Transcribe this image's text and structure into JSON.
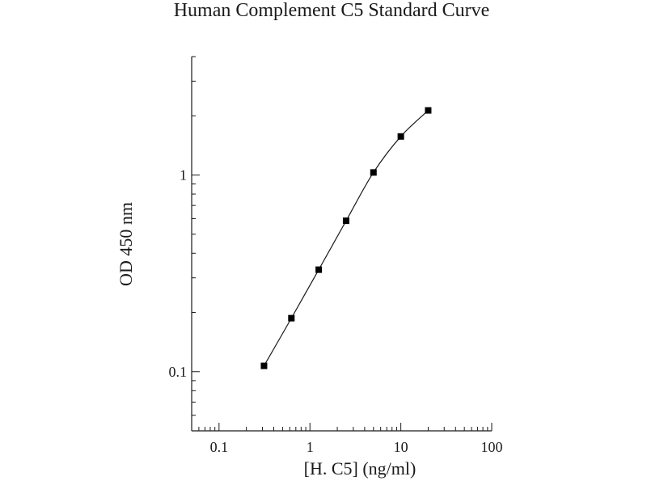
{
  "chart_data": {
    "type": "scatter",
    "title": "Human Complement C5 Standard Curve",
    "xlabel": "[H. C5] (ng/ml)",
    "ylabel": "OD 450 nm",
    "xscale": "log",
    "yscale": "log",
    "xlim": [
      0.05,
      100
    ],
    "ylim": [
      0.05,
      4
    ],
    "x_ticks": [
      {
        "value": 0.1,
        "label": "0.1"
      },
      {
        "value": 1,
        "label": "1"
      },
      {
        "value": 10,
        "label": "10"
      },
      {
        "value": 100,
        "label": "100"
      }
    ],
    "y_ticks": [
      {
        "value": 0.1,
        "label": "0.1"
      },
      {
        "value": 1,
        "label": "1"
      }
    ],
    "grid": false,
    "series": [
      {
        "x": [
          0.3125,
          0.625,
          1.25,
          2.5,
          5,
          10,
          20
        ],
        "y": [
          0.107,
          0.187,
          0.33,
          0.585,
          1.03,
          1.57,
          2.13
        ]
      }
    ],
    "marker": "square",
    "line": "smooth",
    "colors": {
      "ink": "#000000"
    }
  }
}
